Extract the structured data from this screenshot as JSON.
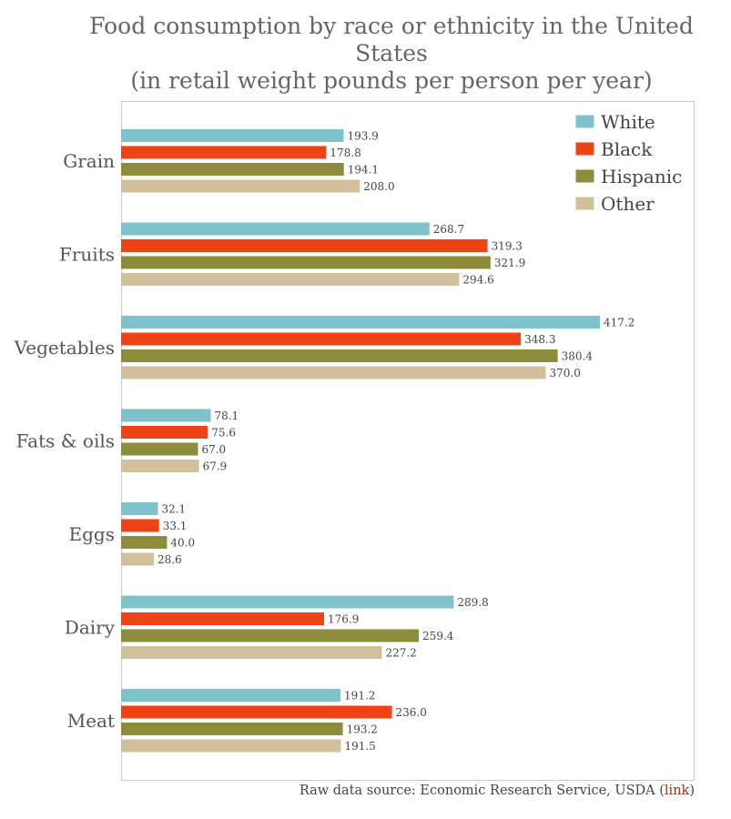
{
  "chart_data": {
    "type": "bar",
    "orientation": "horizontal",
    "title_lines": [
      "Food consumption by race or ethnicity in the United",
      "States",
      "(in retail weight pounds per person per year)"
    ],
    "categories": [
      "Grain",
      "Fruits",
      "Vegetables",
      "Fats & oils",
      "Eggs",
      "Dairy",
      "Meat"
    ],
    "series": [
      {
        "name": "White",
        "color": "#7ec3cc",
        "values": [
          193.9,
          268.7,
          417.2,
          78.1,
          32.1,
          289.8,
          191.2
        ]
      },
      {
        "name": "Black",
        "color": "#ee4314",
        "values": [
          178.8,
          319.3,
          348.3,
          75.6,
          33.1,
          176.9,
          236.0
        ]
      },
      {
        "name": "Hispanic",
        "color": "#8d8c3a",
        "values": [
          194.1,
          321.9,
          380.4,
          67.0,
          40.0,
          259.4,
          193.2
        ]
      },
      {
        "name": "Other",
        "color": "#d2bf9b",
        "values": [
          208.0,
          294.6,
          370.0,
          67.9,
          28.6,
          227.2,
          191.5
        ]
      }
    ],
    "xlim": [
      0,
      500
    ],
    "value_label_decimals": 1,
    "legend_position": "top-right",
    "grid": false
  },
  "source": {
    "text": "Raw data source: Economic Research Service, USDA (",
    "link_text": "link",
    "close": ")"
  }
}
